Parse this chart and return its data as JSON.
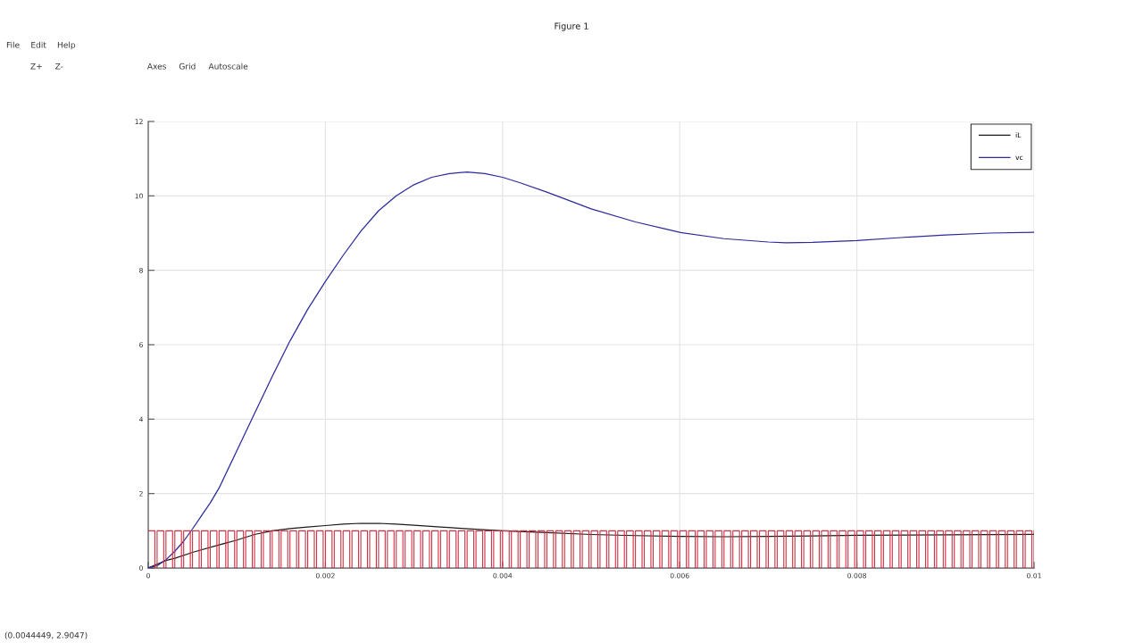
{
  "chart_data": {
    "type": "line",
    "title": "Figure 1",
    "annotations": [
      "File",
      "Edit",
      "Help",
      "Z+",
      "Z-",
      "Axes",
      "Grid",
      "Autoscale",
      "(0.0044449, 2.9047)"
    ],
    "xlim": [
      0,
      0.01
    ],
    "xticks": [
      0,
      0.002,
      0.004,
      0.006,
      0.008,
      0.01
    ],
    "ylim": [
      0,
      12
    ],
    "yticks": [
      0,
      2,
      4,
      6,
      8,
      10,
      12
    ],
    "grid": true,
    "legend": "top right",
    "series": [
      {
        "name": "iL",
        "color": "#1a1a1a",
        "x": [
          0,
          0.0001,
          0.0002,
          0.0003,
          0.0005,
          0.0008,
          0.001,
          0.0012,
          0.0014,
          0.0016,
          0.0018,
          0.002,
          0.0022,
          0.0024,
          0.0026,
          0.0028,
          0.003,
          0.0033,
          0.0037,
          0.004,
          0.0045,
          0.005,
          0.0055,
          0.006,
          0.0065,
          0.007,
          0.0075,
          0.008,
          0.009,
          0.01
        ],
        "values": [
          0,
          0.1,
          0.2,
          0.26,
          0.42,
          0.62,
          0.75,
          0.9,
          1.0,
          1.06,
          1.1,
          1.14,
          1.18,
          1.2,
          1.2,
          1.18,
          1.15,
          1.1,
          1.04,
          1.0,
          0.95,
          0.9,
          0.87,
          0.85,
          0.84,
          0.85,
          0.86,
          0.88,
          0.89,
          0.9
        ]
      },
      {
        "name": "vc",
        "color": "#2a2a9c",
        "x": [
          0,
          0.0001,
          0.0002,
          0.0003,
          0.0004,
          0.0005,
          0.0006,
          0.0007,
          0.0008,
          0.001,
          0.0012,
          0.0014,
          0.0016,
          0.0018,
          0.002,
          0.0022,
          0.0024,
          0.0026,
          0.0028,
          0.003,
          0.0032,
          0.0034,
          0.0036,
          0.0038,
          0.004,
          0.0042,
          0.0045,
          0.005,
          0.0055,
          0.006,
          0.0065,
          0.007,
          0.0072,
          0.0075,
          0.008,
          0.0085,
          0.009,
          0.0095,
          0.01
        ],
        "values": [
          0,
          0.06,
          0.22,
          0.45,
          0.72,
          1.05,
          1.4,
          1.75,
          2.15,
          3.15,
          4.15,
          5.15,
          6.1,
          6.95,
          7.7,
          8.4,
          9.05,
          9.6,
          10.0,
          10.3,
          10.5,
          10.6,
          10.64,
          10.6,
          10.5,
          10.35,
          10.1,
          9.65,
          9.3,
          9.02,
          8.85,
          8.76,
          8.74,
          8.75,
          8.8,
          8.88,
          8.95,
          9.0,
          9.02
        ]
      },
      {
        "type": "step",
        "color": "#cc3344",
        "x": [
          0,
          7.5e-05,
          0.0001,
          0.000175,
          0.0002,
          0.000275,
          0.0003,
          0.000375,
          0.0004,
          0.000475,
          0.0005,
          0.000575,
          0.0006,
          0.000675,
          0.0007,
          0.000775,
          0.0008,
          0.000875,
          0.0009,
          0.000975,
          0.001,
          0.001075,
          0.0011,
          0.001175,
          0.0012,
          0.001275,
          0.0013,
          0.001375,
          0.0014,
          0.001475,
          0.0015,
          0.001575,
          0.0016,
          0.001675,
          0.0017,
          0.001775,
          0.0018,
          0.001875,
          0.0019,
          0.001975,
          0.002,
          0.002075,
          0.0021,
          0.002175,
          0.0022,
          0.002275,
          0.0023,
          0.002375,
          0.0024,
          0.002475,
          0.0025,
          0.002575,
          0.0026,
          0.002675,
          0.0027,
          0.002775,
          0.0028,
          0.002875,
          0.0029,
          0.002975,
          0.003,
          0.003075,
          0.0031,
          0.003175,
          0.0032,
          0.003275,
          0.0033,
          0.003375,
          0.0034,
          0.003475,
          0.0035,
          0.003575,
          0.0036,
          0.003675,
          0.0037,
          0.003775,
          0.0038,
          0.003875,
          0.0039,
          0.003975,
          0.004,
          0.004075,
          0.0041,
          0.004175,
          0.0042,
          0.004275,
          0.0043,
          0.004375,
          0.0044,
          0.004475,
          0.0045,
          0.004575,
          0.0046,
          0.004675,
          0.0047,
          0.004775,
          0.0048,
          0.004875,
          0.0049,
          0.004975,
          0.005,
          0.005075,
          0.0051,
          0.005175,
          0.0052,
          0.005275,
          0.0053,
          0.005375,
          0.0054,
          0.005475,
          0.0055,
          0.005575,
          0.0056,
          0.005675,
          0.0057,
          0.005775,
          0.0058,
          0.005875,
          0.0059,
          0.005975,
          0.006,
          0.006075,
          0.0061,
          0.006175,
          0.0062,
          0.006275,
          0.0063,
          0.006375,
          0.0064,
          0.006475,
          0.0065,
          0.006575,
          0.0066,
          0.006675,
          0.0067,
          0.006775,
          0.0068,
          0.006875,
          0.0069,
          0.006975,
          0.007,
          0.007075,
          0.0071,
          0.007175,
          0.0072,
          0.007275,
          0.0073,
          0.007375,
          0.0074,
          0.007475,
          0.0075,
          0.007575,
          0.0076,
          0.007675,
          0.0077,
          0.007775,
          0.0078,
          0.007875,
          0.0079,
          0.007975,
          0.008,
          0.008075,
          0.0081,
          0.008175,
          0.0082,
          0.008275,
          0.0083,
          0.008375,
          0.0084,
          0.008475,
          0.0085,
          0.008575,
          0.0086,
          0.008675,
          0.0087,
          0.008775,
          0.0088,
          0.008875,
          0.0089,
          0.008975,
          0.009,
          0.009075,
          0.0091,
          0.009175,
          0.0092,
          0.009275,
          0.0093,
          0.009375,
          0.0094,
          0.009475,
          0.0095,
          0.009575,
          0.0096,
          0.009675,
          0.0097,
          0.009775,
          0.0098,
          0.009875,
          0.0099,
          0.009975,
          0.01
        ],
        "values": [
          1,
          0,
          1,
          0,
          1,
          0,
          1,
          0,
          1,
          0,
          1,
          0,
          1,
          0,
          1,
          0,
          1,
          0,
          1,
          0,
          1,
          0,
          1,
          0,
          1,
          0,
          1,
          0,
          1,
          0,
          1,
          0,
          1,
          0,
          1,
          0,
          1,
          0,
          1,
          0,
          1,
          0,
          1,
          0,
          1,
          0,
          1,
          0,
          1,
          0,
          1,
          0,
          1,
          0,
          1,
          0,
          1,
          0,
          1,
          0,
          1,
          0,
          1,
          0,
          1,
          0,
          1,
          0,
          1,
          0,
          1,
          0,
          1,
          0,
          1,
          0,
          1,
          0,
          1,
          0,
          1,
          0,
          1,
          0,
          1,
          0,
          1,
          0,
          1,
          0,
          1,
          0,
          1,
          0,
          1,
          0,
          1,
          0,
          1,
          0,
          1,
          0,
          1,
          0,
          1,
          0,
          1,
          0,
          1,
          0,
          1,
          0,
          1,
          0,
          1,
          0,
          1,
          0,
          1,
          0,
          1,
          0,
          1,
          0,
          1,
          0,
          1,
          0,
          1,
          0,
          1,
          0,
          1,
          0,
          1,
          0,
          1,
          0,
          1,
          0,
          1,
          0,
          1,
          0,
          1,
          0,
          1,
          0,
          1,
          0,
          1,
          0,
          1,
          0,
          1,
          0,
          1,
          0,
          1,
          0,
          1,
          0,
          1,
          0,
          1,
          0,
          1,
          0,
          1,
          0,
          1,
          0,
          1,
          0,
          1,
          0,
          1,
          0,
          1,
          0,
          1,
          0,
          1,
          0,
          1,
          0,
          1,
          0,
          1,
          0,
          1,
          0,
          1,
          0,
          1,
          0,
          1,
          0,
          1,
          0,
          1
        ]
      }
    ]
  }
}
